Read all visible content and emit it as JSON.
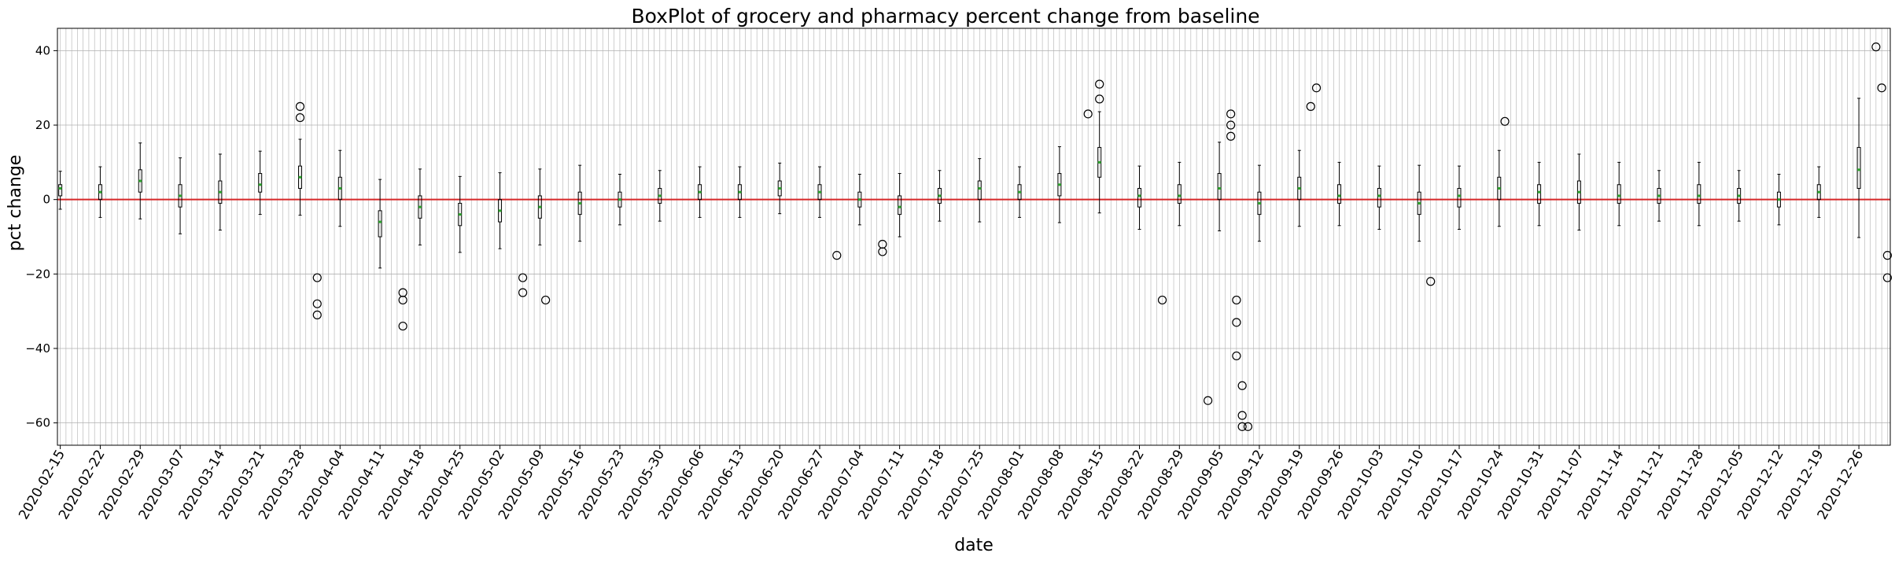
{
  "chart_data": {
    "type": "boxplot",
    "title": "BoxPlot of grocery and pharmacy percent change from baseline",
    "xlabel": "date",
    "ylabel": "pct change",
    "ylim": [
      -66,
      46
    ],
    "yticks": [
      -60,
      -40,
      -20,
      0,
      20,
      40
    ],
    "grid": true,
    "reference_line": {
      "y": 0,
      "color": "#d62728"
    },
    "dates": {
      "start": "2020-02-15",
      "end": "2020-12-31"
    },
    "xtick_labels": [
      "2020-02-15",
      "2020-02-22",
      "2020-02-29",
      "2020-03-07",
      "2020-03-14",
      "2020-03-21",
      "2020-03-28",
      "2020-04-04",
      "2020-04-11",
      "2020-04-18",
      "2020-04-25",
      "2020-05-02",
      "2020-05-09",
      "2020-05-16",
      "2020-05-23",
      "2020-05-30",
      "2020-06-06",
      "2020-06-13",
      "2020-06-20",
      "2020-06-27",
      "2020-07-04",
      "2020-07-11",
      "2020-07-18",
      "2020-07-25",
      "2020-08-01",
      "2020-08-08",
      "2020-08-15",
      "2020-08-22",
      "2020-08-29",
      "2020-09-05",
      "2020-09-12",
      "2020-09-19",
      "2020-09-26",
      "2020-10-03",
      "2020-10-10",
      "2020-10-17",
      "2020-10-24",
      "2020-10-31",
      "2020-11-07",
      "2020-11-14",
      "2020-11-21",
      "2020-11-28",
      "2020-12-05",
      "2020-12-12",
      "2020-12-19",
      "2020-12-26"
    ],
    "boxes": [
      {
        "date": "2020-02-15",
        "q1": 1,
        "median": 3,
        "q3": 4
      },
      {
        "date": "2020-02-22",
        "q1": 0,
        "median": 2,
        "q3": 4
      },
      {
        "date": "2020-02-29",
        "q1": 2,
        "median": 5,
        "q3": 8
      },
      {
        "date": "2020-03-07",
        "q1": -2,
        "median": 1,
        "q3": 4
      },
      {
        "date": "2020-03-14",
        "q1": -1,
        "median": 2,
        "q3": 5
      },
      {
        "date": "2020-03-21",
        "q1": 2,
        "median": 4,
        "q3": 7
      },
      {
        "date": "2020-03-28",
        "q1": 3,
        "median": 6,
        "q3": 9
      },
      {
        "date": "2020-04-04",
        "q1": 0,
        "median": 3,
        "q3": 6
      },
      {
        "date": "2020-04-11",
        "q1": -10,
        "median": -6,
        "q3": -3
      },
      {
        "date": "2020-04-18",
        "q1": -5,
        "median": -2,
        "q3": 1
      },
      {
        "date": "2020-04-25",
        "q1": -7,
        "median": -4,
        "q3": -1
      },
      {
        "date": "2020-05-02",
        "q1": -6,
        "median": -3,
        "q3": 0
      },
      {
        "date": "2020-05-09",
        "q1": -5,
        "median": -2,
        "q3": 1
      },
      {
        "date": "2020-05-16",
        "q1": -4,
        "median": -1,
        "q3": 2
      },
      {
        "date": "2020-05-23",
        "q1": -2,
        "median": 0,
        "q3": 2
      },
      {
        "date": "2020-05-30",
        "q1": -1,
        "median": 1,
        "q3": 3
      },
      {
        "date": "2020-06-06",
        "q1": 0,
        "median": 2,
        "q3": 4
      },
      {
        "date": "2020-06-13",
        "q1": 0,
        "median": 2,
        "q3": 4
      },
      {
        "date": "2020-06-20",
        "q1": 1,
        "median": 3,
        "q3": 5
      },
      {
        "date": "2020-06-27",
        "q1": 0,
        "median": 2,
        "q3": 4
      },
      {
        "date": "2020-07-04",
        "q1": -2,
        "median": 0,
        "q3": 2
      },
      {
        "date": "2020-07-11",
        "q1": -4,
        "median": -2,
        "q3": 1
      },
      {
        "date": "2020-07-18",
        "q1": -1,
        "median": 1,
        "q3": 3
      },
      {
        "date": "2020-07-25",
        "q1": 0,
        "median": 3,
        "q3": 5
      },
      {
        "date": "2020-08-01",
        "q1": 0,
        "median": 2,
        "q3": 4
      },
      {
        "date": "2020-08-08",
        "q1": 1,
        "median": 4,
        "q3": 7
      },
      {
        "date": "2020-08-15",
        "q1": 6,
        "median": 10,
        "q3": 14
      },
      {
        "date": "2020-08-22",
        "q1": -2,
        "median": 1,
        "q3": 3
      },
      {
        "date": "2020-08-29",
        "q1": -1,
        "median": 1,
        "q3": 4
      },
      {
        "date": "2020-09-05",
        "q1": 0,
        "median": 3,
        "q3": 7
      },
      {
        "date": "2020-09-12",
        "q1": -4,
        "median": -1,
        "q3": 2
      },
      {
        "date": "2020-09-19",
        "q1": 0,
        "median": 3,
        "q3": 6
      },
      {
        "date": "2020-09-26",
        "q1": -1,
        "median": 1,
        "q3": 4
      },
      {
        "date": "2020-10-03",
        "q1": -2,
        "median": 1,
        "q3": 3
      },
      {
        "date": "2020-10-10",
        "q1": -4,
        "median": -1,
        "q3": 2
      },
      {
        "date": "2020-10-17",
        "q1": -2,
        "median": 1,
        "q3": 3
      },
      {
        "date": "2020-10-24",
        "q1": 0,
        "median": 3,
        "q3": 6
      },
      {
        "date": "2020-10-31",
        "q1": -1,
        "median": 2,
        "q3": 4
      },
      {
        "date": "2020-11-07",
        "q1": -1,
        "median": 2,
        "q3": 5
      },
      {
        "date": "2020-11-14",
        "q1": -1,
        "median": 1,
        "q3": 4
      },
      {
        "date": "2020-11-21",
        "q1": -1,
        "median": 1,
        "q3": 3
      },
      {
        "date": "2020-11-28",
        "q1": -1,
        "median": 1,
        "q3": 4
      },
      {
        "date": "2020-12-05",
        "q1": -1,
        "median": 1,
        "q3": 3
      },
      {
        "date": "2020-12-12",
        "q1": -2,
        "median": 0,
        "q3": 2
      },
      {
        "date": "2020-12-19",
        "q1": 0,
        "median": 2,
        "q3": 4
      },
      {
        "date": "2020-12-26",
        "q1": 3,
        "median": 8,
        "q3": 14
      }
    ],
    "outliers": [
      {
        "date": "2020-03-28",
        "y": 25
      },
      {
        "date": "2020-03-28",
        "y": 22
      },
      {
        "date": "2020-03-31",
        "y": -31
      },
      {
        "date": "2020-03-31",
        "y": -28
      },
      {
        "date": "2020-03-31",
        "y": -21
      },
      {
        "date": "2020-04-15",
        "y": -34
      },
      {
        "date": "2020-04-15",
        "y": -27
      },
      {
        "date": "2020-04-15",
        "y": -25
      },
      {
        "date": "2020-05-06",
        "y": -25
      },
      {
        "date": "2020-05-06",
        "y": -21
      },
      {
        "date": "2020-05-10",
        "y": -27
      },
      {
        "date": "2020-06-30",
        "y": -15
      },
      {
        "date": "2020-07-08",
        "y": -14
      },
      {
        "date": "2020-07-08",
        "y": -12
      },
      {
        "date": "2020-08-15",
        "y": 31
      },
      {
        "date": "2020-08-15",
        "y": 27
      },
      {
        "date": "2020-08-13",
        "y": 23
      },
      {
        "date": "2020-08-26",
        "y": -27
      },
      {
        "date": "2020-09-03",
        "y": -54
      },
      {
        "date": "2020-09-07",
        "y": 23
      },
      {
        "date": "2020-09-07",
        "y": 20
      },
      {
        "date": "2020-09-07",
        "y": 17
      },
      {
        "date": "2020-09-08",
        "y": -27
      },
      {
        "date": "2020-09-08",
        "y": -33
      },
      {
        "date": "2020-09-08",
        "y": -42
      },
      {
        "date": "2020-09-09",
        "y": -50
      },
      {
        "date": "2020-09-09",
        "y": -58
      },
      {
        "date": "2020-09-09",
        "y": -61
      },
      {
        "date": "2020-09-10",
        "y": -61
      },
      {
        "date": "2020-09-22",
        "y": 30
      },
      {
        "date": "2020-09-21",
        "y": 25
      },
      {
        "date": "2020-10-12",
        "y": -22
      },
      {
        "date": "2020-10-25",
        "y": 21
      },
      {
        "date": "2020-12-29",
        "y": 41
      },
      {
        "date": "2020-12-30",
        "y": 30
      },
      {
        "date": "2020-12-31",
        "y": -15
      },
      {
        "date": "2020-12-31",
        "y": -21
      }
    ]
  }
}
